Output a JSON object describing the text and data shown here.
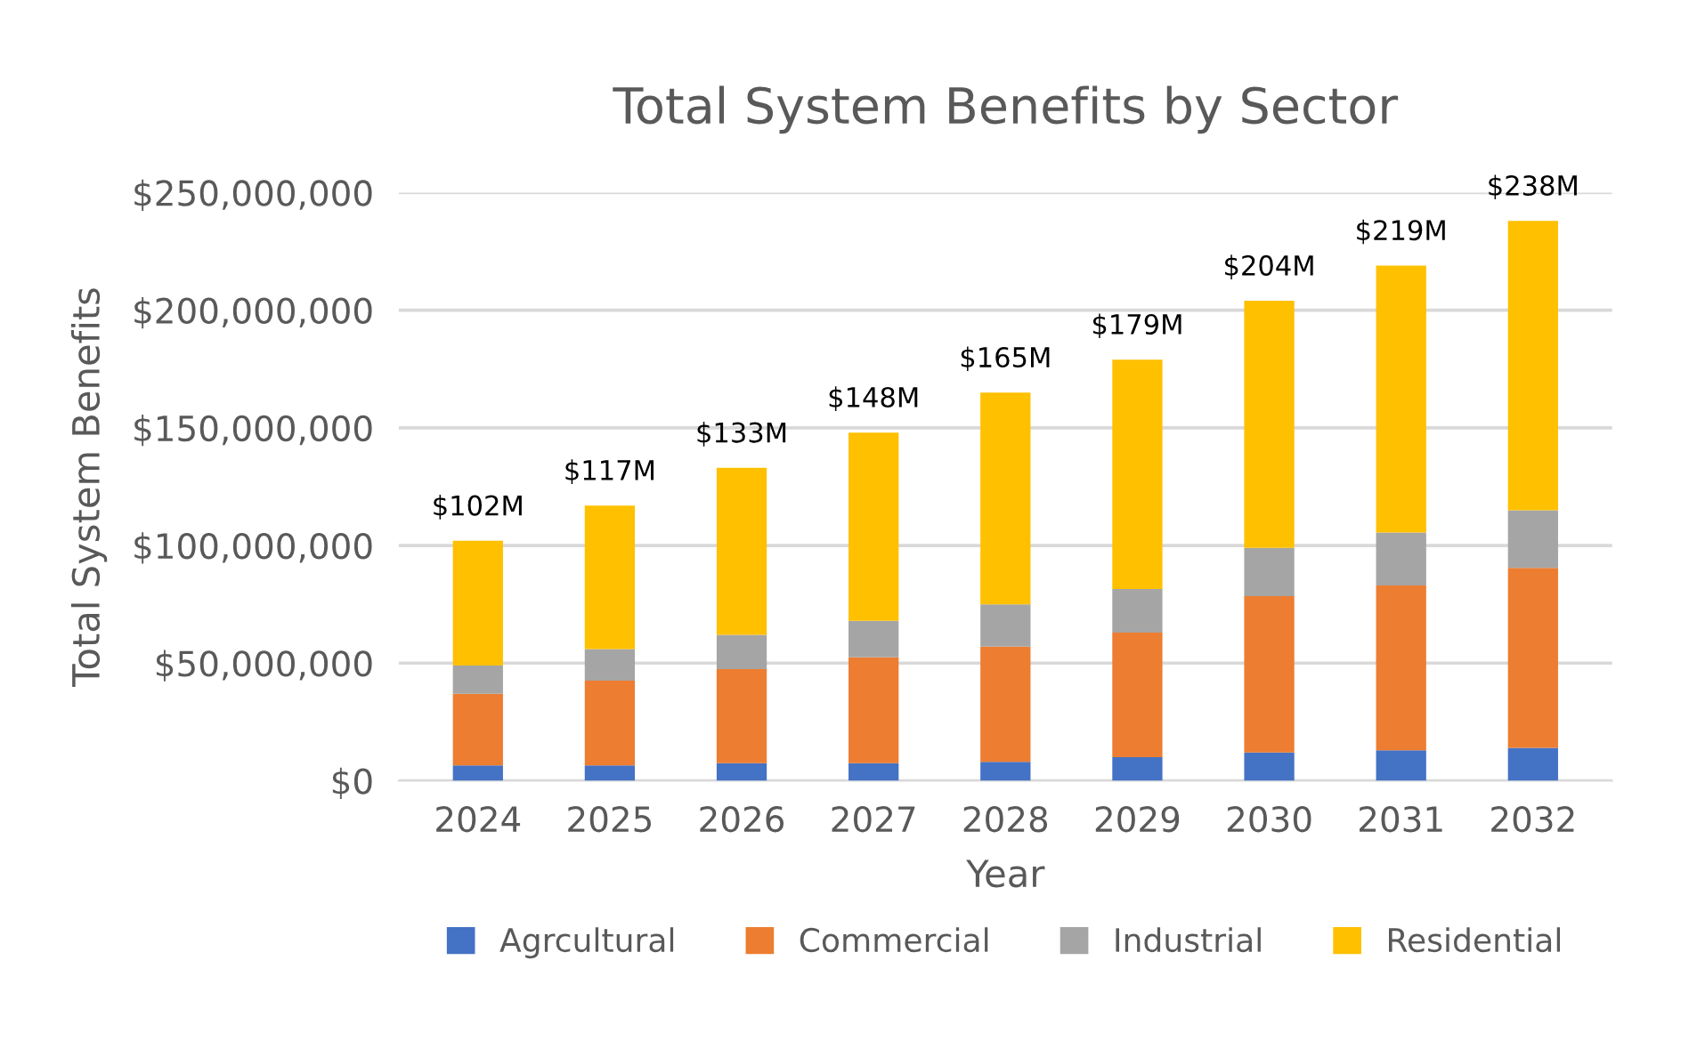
{
  "chart_data": {
    "type": "bar",
    "title": "Total System Benefits by Sector",
    "xlabel": "Year",
    "ylabel": "Total System Benefits",
    "categories": [
      "2024",
      "2025",
      "2026",
      "2027",
      "2028",
      "2029",
      "2030",
      "2031",
      "2032"
    ],
    "stacked": true,
    "series": [
      {
        "name": "Agrcultural",
        "color": "#4472c4",
        "values": [
          6500000,
          6500000,
          7500000,
          7500000,
          8000000,
          10000000,
          12000000,
          13000000,
          14000000
        ]
      },
      {
        "name": "Commercial",
        "color": "#ed7d31",
        "values": [
          30500000,
          36000000,
          40000000,
          45000000,
          49000000,
          53000000,
          66500000,
          70000000,
          76500000
        ]
      },
      {
        "name": "Industrial",
        "color": "#a5a5a5",
        "values": [
          12000000,
          13500000,
          14500000,
          15500000,
          18000000,
          18500000,
          20500000,
          22500000,
          24500000
        ]
      },
      {
        "name": "Residential",
        "color": "#ffc000",
        "values": [
          53000000,
          61000000,
          71000000,
          80000000,
          90000000,
          97500000,
          105000000,
          113500000,
          123000000
        ]
      }
    ],
    "totals": [
      "$102M",
      "$117M",
      "$133M",
      "$148M",
      "$165M",
      "$179M",
      "$204M",
      "$219M",
      "$238M"
    ],
    "ylim": [
      0,
      250000000
    ],
    "yticks": [
      {
        "value": 0,
        "label": "$0"
      },
      {
        "value": 50000000,
        "label": "$50,000,000"
      },
      {
        "value": 100000000,
        "label": "$100,000,000"
      },
      {
        "value": 150000000,
        "label": "$150,000,000"
      },
      {
        "value": 200000000,
        "label": "$200,000,000"
      },
      {
        "value": 250000000,
        "label": "$250,000,000"
      }
    ],
    "grid": "y",
    "legend": "bottom"
  }
}
